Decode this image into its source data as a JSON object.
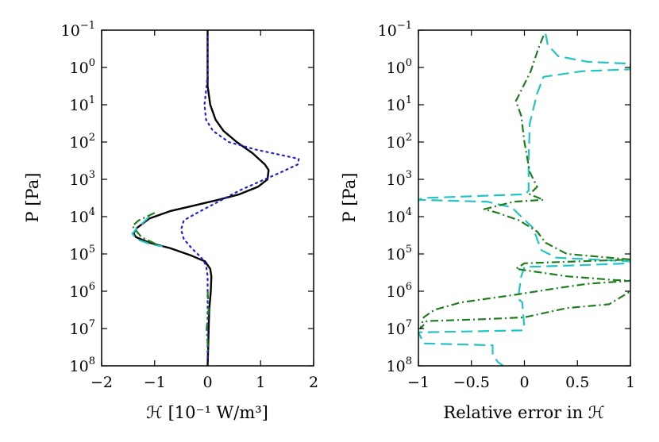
{
  "chart_data": [
    {
      "type": "line",
      "id": "left",
      "xlabel": "ℋ [10⁻¹ W/m³]",
      "ylabel": "P [Pa]",
      "xlim": [
        -2,
        2
      ],
      "ylim_log10": [
        -1,
        8
      ],
      "y_inverted": true,
      "y_scale": "log",
      "xticks": [
        "−2",
        "−1",
        "0",
        "1",
        "2"
      ],
      "xtick_values": [
        -2,
        -1,
        0,
        1,
        2
      ],
      "ytick_exponents": [
        -1,
        0,
        1,
        2,
        3,
        4,
        5,
        6,
        7,
        8
      ],
      "series": [
        {
          "name": "black-solid",
          "color": "#000000",
          "style": "solid",
          "points": [
            [
              0,
              -1
            ],
            [
              0,
              0
            ],
            [
              0,
              0.5
            ],
            [
              0.05,
              1
            ],
            [
              0.15,
              1.4
            ],
            [
              0.3,
              1.7
            ],
            [
              0.55,
              2
            ],
            [
              0.85,
              2.3
            ],
            [
              1.08,
              2.6
            ],
            [
              1.15,
              2.75
            ],
            [
              1.13,
              3
            ],
            [
              0.95,
              3.2
            ],
            [
              0.6,
              3.4
            ],
            [
              0.2,
              3.55
            ],
            [
              -0.25,
              3.7
            ],
            [
              -0.7,
              3.85
            ],
            [
              -1.1,
              4.05
            ],
            [
              -1.33,
              4.3
            ],
            [
              -1.4,
              4.45
            ],
            [
              -1.35,
              4.55
            ],
            [
              -1.1,
              4.7
            ],
            [
              -0.7,
              4.85
            ],
            [
              -0.3,
              5.05
            ],
            [
              -0.05,
              5.2
            ],
            [
              0.05,
              5.4
            ],
            [
              0.07,
              5.6
            ],
            [
              0.06,
              6
            ],
            [
              0.03,
              6.5
            ],
            [
              0.02,
              7
            ],
            [
              0.01,
              7.5
            ],
            [
              0,
              8
            ]
          ]
        },
        {
          "name": "blue-dotted",
          "color": "#1f1fd6",
          "style": "dotted",
          "points": [
            [
              0,
              -1
            ],
            [
              0,
              0.2
            ],
            [
              -0.02,
              0.5
            ],
            [
              -0.06,
              1
            ],
            [
              -0.03,
              1.4
            ],
            [
              0.1,
              1.7
            ],
            [
              0.4,
              2
            ],
            [
              0.9,
              2.2
            ],
            [
              1.4,
              2.35
            ],
            [
              1.72,
              2.45
            ],
            [
              1.7,
              2.6
            ],
            [
              1.4,
              2.8
            ],
            [
              1.0,
              3.05
            ],
            [
              0.6,
              3.3
            ],
            [
              0.2,
              3.6
            ],
            [
              -0.2,
              3.9
            ],
            [
              -0.45,
              4.1
            ],
            [
              -0.5,
              4.35
            ],
            [
              -0.45,
              4.6
            ],
            [
              -0.3,
              4.85
            ],
            [
              -0.12,
              5.1
            ],
            [
              -0.03,
              5.3
            ],
            [
              0.0,
              5.6
            ],
            [
              0,
              8
            ]
          ]
        },
        {
          "name": "green-dashdot",
          "color": "#1e7d1e",
          "style": "dashdot",
          "points": [
            [
              0,
              6
            ],
            [
              0.02,
              6.5
            ],
            [
              -0.02,
              7
            ],
            [
              0.01,
              7.6
            ]
          ]
        },
        {
          "name": "cyan-dashed",
          "color": "#22c4c4",
          "style": "dashed",
          "points": [
            [
              -1.1,
              4.0
            ],
            [
              -1.32,
              4.3
            ],
            [
              -1.42,
              4.45
            ],
            [
              -1.35,
              4.6
            ],
            [
              -1.05,
              4.75
            ],
            [
              -0.85,
              4.8
            ]
          ]
        },
        {
          "name": "green-dashdot-2",
          "color": "#1e7d1e",
          "style": "dashdot",
          "points": [
            [
              -1.0,
              3.9
            ],
            [
              -1.3,
              4.1
            ],
            [
              -1.42,
              4.25
            ],
            [
              -1.25,
              4.55
            ],
            [
              -0.95,
              4.75
            ]
          ]
        }
      ]
    },
    {
      "type": "line",
      "id": "right",
      "xlabel": "Relative error in ℋ",
      "ylabel": "P [Pa]",
      "xlim": [
        -1,
        1
      ],
      "ylim_log10": [
        -1,
        8
      ],
      "y_inverted": true,
      "y_scale": "log",
      "xticks": [
        "−1",
        "−0.5",
        "0",
        "0.5",
        "1"
      ],
      "xtick_values": [
        -1,
        -0.5,
        0,
        0.5,
        1
      ],
      "ytick_exponents": [
        -1,
        0,
        1,
        2,
        3,
        4,
        5,
        6,
        7,
        8
      ],
      "series": [
        {
          "name": "cyan-dashed",
          "color": "#22c4c4",
          "style": "dashed",
          "points": [
            [
              0.2,
              -0.9
            ],
            [
              0.22,
              -0.6
            ],
            [
              0.32,
              -0.3
            ],
            [
              0.6,
              -0.15
            ],
            [
              1.0,
              -0.1
            ],
            [
              1.0,
              0.05
            ],
            [
              0.55,
              0.1
            ],
            [
              0.18,
              0.25
            ],
            [
              0.12,
              0.7
            ],
            [
              0.05,
              1.5
            ],
            [
              0.04,
              2.5
            ],
            [
              0.04,
              3.3
            ],
            [
              0.01,
              3.4
            ],
            [
              -0.95,
              3.5
            ],
            [
              -1.0,
              3.55
            ],
            [
              -0.35,
              3.6
            ],
            [
              -0.12,
              3.75
            ],
            [
              -0.03,
              4.0
            ],
            [
              0.08,
              4.3
            ],
            [
              0.12,
              4.6
            ],
            [
              0.16,
              4.9
            ],
            [
              0.3,
              5.1
            ],
            [
              1.0,
              5.2
            ],
            [
              1.0,
              5.25
            ],
            [
              0.55,
              5.3
            ],
            [
              0.0,
              5.35
            ],
            [
              -0.03,
              5.6
            ],
            [
              -0.05,
              6.0
            ],
            [
              -0.06,
              6.2
            ],
            [
              -0.02,
              6.3
            ],
            [
              0.0,
              7.0
            ],
            [
              -0.03,
              7.05
            ],
            [
              -0.95,
              7.1
            ],
            [
              -1.0,
              7.1
            ],
            [
              -0.95,
              7.4
            ],
            [
              -0.3,
              7.45
            ],
            [
              -0.3,
              7.7
            ],
            [
              -0.25,
              7.9
            ],
            [
              -0.2,
              8.0
            ]
          ]
        },
        {
          "name": "green-dashdot",
          "color": "#1e7d1e",
          "style": "dashdot",
          "points": [
            [
              0.18,
              -0.85
            ],
            [
              0.13,
              -0.5
            ],
            [
              0.06,
              0.1
            ],
            [
              -0.08,
              0.9
            ],
            [
              -0.03,
              1.3
            ],
            [
              0.0,
              2.0
            ],
            [
              0.05,
              2.8
            ],
            [
              0.12,
              3.2
            ],
            [
              0.05,
              3.4
            ],
            [
              0.18,
              3.55
            ],
            [
              -0.1,
              3.6
            ],
            [
              -0.38,
              3.8
            ],
            [
              -0.25,
              3.9
            ],
            [
              -0.05,
              4.1
            ],
            [
              0.12,
              4.4
            ],
            [
              0.2,
              4.7
            ],
            [
              0.4,
              5.0
            ],
            [
              0.6,
              5.05
            ],
            [
              1.0,
              5.15
            ],
            [
              0.5,
              5.2
            ],
            [
              0.0,
              5.25
            ],
            [
              -0.08,
              5.4
            ],
            [
              0.4,
              5.6
            ],
            [
              0.85,
              5.7
            ],
            [
              1.0,
              5.72
            ],
            [
              0.6,
              5.8
            ],
            [
              0.35,
              5.9
            ],
            [
              -0.1,
              6.1
            ],
            [
              -0.6,
              6.3
            ],
            [
              -0.85,
              6.5
            ],
            [
              -0.95,
              6.7
            ],
            [
              -0.98,
              7.0
            ],
            [
              -0.92,
              6.8
            ],
            [
              -0.4,
              6.75
            ],
            [
              0.0,
              6.7
            ],
            [
              0.4,
              6.45
            ],
            [
              0.8,
              6.35
            ],
            [
              1.0,
              6.0
            ]
          ]
        }
      ]
    }
  ]
}
